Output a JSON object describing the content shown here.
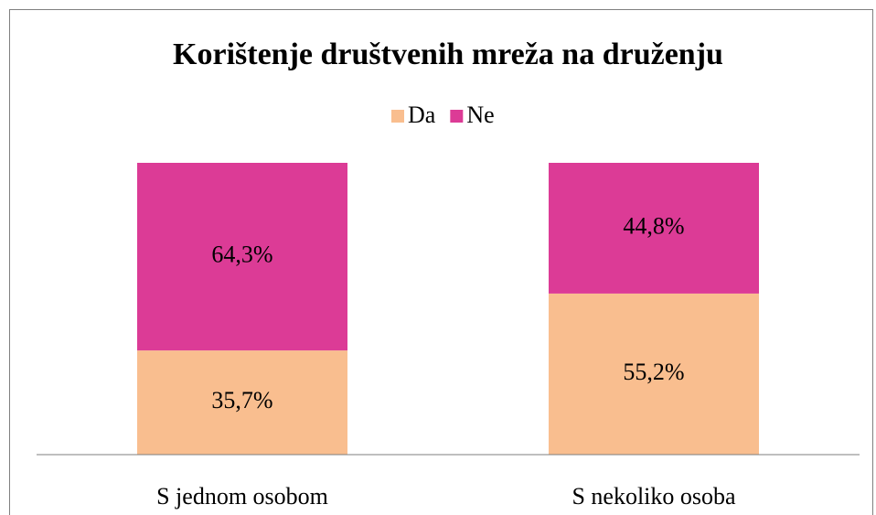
{
  "chart_data": {
    "type": "stacked_bar",
    "title": "Korištenje društvenih mreža na druženju",
    "categories": [
      "S jednom osobom",
      "S nekoliko osoba"
    ],
    "series": [
      {
        "name": "Da",
        "color": "#f9be8f",
        "values": [
          35.7,
          55.2
        ],
        "value_labels": [
          "35,7%",
          "55,2%"
        ]
      },
      {
        "name": "Ne",
        "color": "#dc3b96",
        "values": [
          64.3,
          44.8
        ],
        "value_labels": [
          "64,3%",
          "44,8%"
        ]
      }
    ],
    "ylim": [
      0,
      100
    ],
    "legend": "top"
  }
}
